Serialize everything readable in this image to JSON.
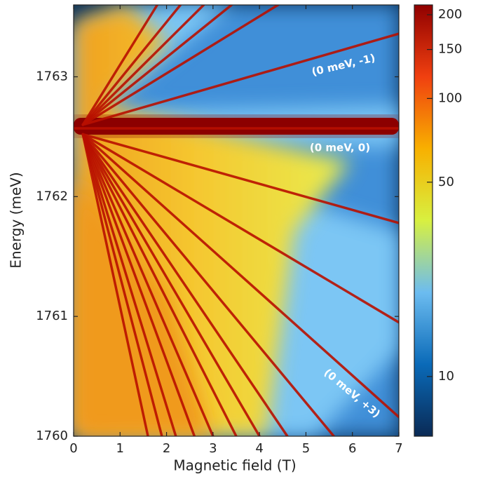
{
  "chart_data": {
    "type": "heatmap",
    "xlabel": "Magnetic field (T)",
    "ylabel": "Energy  (meV)",
    "xlim": [
      0,
      7
    ],
    "ylim": [
      1760,
      1763.6
    ],
    "xticks": [
      0,
      1,
      2,
      3,
      4,
      5,
      6,
      7
    ],
    "yticks": [
      1760,
      1761,
      1762,
      1763
    ],
    "ridge_color": "#b81000",
    "ridges": [
      {
        "x": [
          0.2,
          7
        ],
        "values": [
          1762.6,
          1763.36
        ]
      },
      {
        "x": [
          0.2,
          4.4
        ],
        "values": [
          1762.6,
          1763.6
        ]
      },
      {
        "x": [
          0.2,
          3.4
        ],
        "values": [
          1762.6,
          1763.6
        ]
      },
      {
        "x": [
          0.2,
          2.8
        ],
        "values": [
          1762.6,
          1763.6
        ]
      },
      {
        "x": [
          0.2,
          2.3
        ],
        "values": [
          1762.6,
          1763.6
        ]
      },
      {
        "x": [
          0.2,
          1.8
        ],
        "values": [
          1762.6,
          1763.6
        ]
      },
      {
        "x": [
          0,
          7
        ],
        "values": [
          1762.57,
          1762.57
        ]
      },
      {
        "x": [
          0.2,
          7
        ],
        "values": [
          1762.52,
          1761.78
        ]
      },
      {
        "x": [
          0.2,
          7
        ],
        "values": [
          1762.52,
          1760.95
        ]
      },
      {
        "x": [
          0.2,
          7
        ],
        "values": [
          1762.52,
          1760.16
        ]
      },
      {
        "x": [
          0.2,
          5.6
        ],
        "values": [
          1762.52,
          1760
        ]
      },
      {
        "x": [
          0.2,
          4.6
        ],
        "values": [
          1762.52,
          1760
        ]
      },
      {
        "x": [
          0.2,
          4.0
        ],
        "values": [
          1762.52,
          1760
        ]
      },
      {
        "x": [
          0.2,
          3.5
        ],
        "values": [
          1762.52,
          1760
        ]
      },
      {
        "x": [
          0.2,
          3.0
        ],
        "values": [
          1762.52,
          1760
        ]
      },
      {
        "x": [
          0.2,
          2.6
        ],
        "values": [
          1762.52,
          1760
        ]
      },
      {
        "x": [
          0.2,
          2.2
        ],
        "values": [
          1762.52,
          1760
        ]
      },
      {
        "x": [
          0.2,
          1.9
        ],
        "values": [
          1762.52,
          1760
        ]
      },
      {
        "x": [
          0.2,
          1.6
        ],
        "values": [
          1762.52,
          1760
        ]
      }
    ],
    "annotations": [
      "(0 meV, -1)",
      "(0 meV, 0)",
      "(0 meV, +3)"
    ],
    "colorbar": {
      "scale": "log",
      "lim": [
        6.1,
        217
      ],
      "ticks": [
        10,
        50,
        100,
        150,
        200
      ],
      "colors": [
        "#0a2a55",
        "#0a6ab8",
        "#6cbcf0",
        "#d8f040",
        "#f8b000",
        "#f04010",
        "#900000"
      ]
    }
  }
}
